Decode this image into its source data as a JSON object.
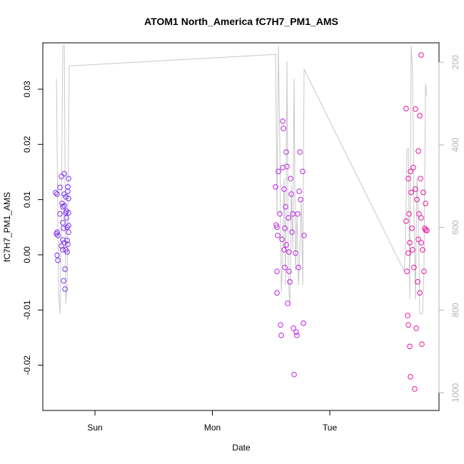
{
  "chart_data": {
    "type": "scatter",
    "title": "ATOM1 North_America fC7H7_PM1_AMS",
    "x_label": "Date",
    "y_label": "fC7H7_PM1_AMS",
    "xlim": [
      -0.444,
      2.93
    ],
    "xticks": [
      {
        "value": 0,
        "label": "Sun"
      },
      {
        "value": 1,
        "label": "Mon"
      },
      {
        "value": 2,
        "label": "Tue"
      }
    ],
    "ylim": [
      -0.0282,
      0.0384
    ],
    "yticks": [
      -0.02,
      -0.01,
      {
        "value": 0,
        "label": "0.00"
      },
      0.01,
      0.02,
      0.03
    ],
    "y2lim": [
      1043,
      153
    ],
    "y2ticks": [
      200,
      400,
      600,
      800,
      1000
    ],
    "series": [
      {
        "color": "#7a2ff5",
        "x": [
          -0.334,
          -0.322,
          -0.328,
          -0.322,
          -0.316,
          -0.322,
          -0.316,
          -0.298,
          -0.298,
          -0.286,
          -0.286,
          -0.28,
          -0.274,
          -0.274,
          -0.274,
          -0.274,
          -0.267,
          -0.267,
          -0.261,
          -0.261,
          -0.261,
          -0.261,
          -0.255,
          -0.255,
          -0.249,
          -0.249,
          -0.249,
          -0.243,
          -0.243,
          -0.237,
          -0.237,
          -0.237,
          -0.231,
          -0.231,
          -0.225,
          -0.225,
          -0.225,
          -0.225,
          -0.225,
          -0.231
        ],
        "values": [
          0.01125,
          0.011,
          0.0038,
          0.0041,
          0.0035,
          -0.0001,
          -0.001,
          0.0122,
          0.0074,
          0.0142,
          0.0016,
          0.0093,
          0.0087,
          0.0058,
          0.0027,
          0.0009,
          0.0048,
          -0.0047,
          0.0147,
          0.011,
          0.0089,
          0.0022,
          -0.0062,
          -0.0026,
          0.0009,
          0.0105,
          0.0076,
          0.0079,
          0.0067,
          0.005,
          0.0026,
          0.0005,
          0.0115,
          0.0019,
          0.0076,
          0.0053,
          0.0102,
          0.0041,
          0.0138,
          0.0123
        ]
      },
      {
        "color": "#c21fe6",
        "x": [
          1.538,
          1.544,
          1.55,
          1.556,
          1.55,
          1.562,
          1.574,
          1.581,
          1.587,
          1.599,
          1.599,
          1.605,
          1.611,
          1.617,
          1.611,
          1.617,
          1.623,
          1.629,
          1.635,
          1.641,
          1.647,
          1.653,
          1.653,
          1.66,
          1.666,
          1.672,
          1.678,
          1.684,
          1.69,
          1.696,
          1.708,
          1.714,
          1.72,
          1.726,
          1.733,
          1.739,
          1.745,
          1.751,
          1.769,
          1.781,
          1.775,
          1.55,
          1.593,
          1.629
        ],
        "values": [
          0.0123,
          0.0054,
          0.005,
          0.0035,
          -0.0069,
          0.0151,
          0.0074,
          -0.0127,
          -0.0146,
          0.0242,
          0.0158,
          0.0229,
          0.0119,
          0.0048,
          0.0009,
          -0.0023,
          0.0087,
          0.0186,
          0.016,
          -0.0088,
          0.0067,
          0.0005,
          -0.003,
          -0.0049,
          0.0138,
          0.011,
          0.0041,
          0.0074,
          -0.0133,
          -0.0217,
          0.0003,
          -0.014,
          -0.0146,
          0.0074,
          -0.0023,
          0.0115,
          0.0186,
          0.01,
          0.0151,
          0.0035,
          -0.0124,
          -0.003,
          0.0028,
          0.0018
        ]
      },
      {
        "color": "#e8139f",
        "x": [
          2.65,
          2.65,
          2.657,
          2.663,
          2.669,
          2.669,
          2.675,
          2.681,
          2.681,
          2.687,
          2.687,
          2.693,
          2.699,
          2.705,
          2.711,
          2.717,
          2.723,
          2.729,
          2.729,
          2.736,
          2.742,
          2.748,
          2.754,
          2.76,
          2.766,
          2.766,
          2.772,
          2.778,
          2.778,
          2.784,
          2.79,
          2.796,
          2.802,
          2.809,
          2.815,
          2.815,
          2.827,
          2.778,
          2.669,
          2.754
        ],
        "values": [
          0.0265,
          0.0061,
          -0.003,
          -0.011,
          -0.0127,
          0.0138,
          0.0074,
          -0.0166,
          0.0022,
          -0.0221,
          0.0151,
          0.0113,
          0.0048,
          0.0009,
          0.0158,
          -0.0023,
          -0.0243,
          0.0264,
          0.0119,
          -0.0133,
          0.01,
          -0.0049,
          0.0188,
          0.0074,
          0.0252,
          -0.0069,
          0.0138,
          0.0067,
          0.0022,
          -0.0162,
          0.0009,
          0.0113,
          -0.003,
          0.0048,
          0.0093,
          0.0045,
          0.0044,
          0.0362,
          0.0003,
          0.0028
        ]
      },
      {
        "type": "line",
        "axis": "y2",
        "color": "#c8c8c8",
        "x": [
          -0.328,
          -0.31,
          -0.298,
          -0.286,
          -0.274,
          -0.261,
          -0.249,
          -0.237,
          -0.219,
          1.538,
          1.55,
          1.562,
          1.574,
          1.587,
          1.599,
          1.611,
          1.623,
          1.635,
          1.647,
          1.66,
          1.672,
          1.684,
          1.696,
          1.708,
          1.72,
          1.733,
          1.745,
          1.757,
          1.769,
          1.781,
          2.632,
          2.644,
          2.657,
          2.669,
          2.681,
          2.693,
          2.705,
          2.717,
          2.729,
          2.742,
          2.754,
          2.766,
          2.778,
          2.79,
          2.802,
          2.815,
          2.827
        ],
        "values": [
          240,
          757,
          809,
          567,
          160,
          160,
          784,
          740,
          209,
          181,
          567,
          160,
          388,
          757,
          671,
          481,
          740,
          197,
          722,
          791,
          498,
          653,
          240,
          705,
          567,
          740,
          653,
          533,
          740,
          217,
          705,
          653,
          412,
          409,
          774,
          160,
          224,
          567,
          774,
          481,
          567,
          809,
          809,
          809,
          705,
          253,
          283
        ]
      }
    ]
  }
}
